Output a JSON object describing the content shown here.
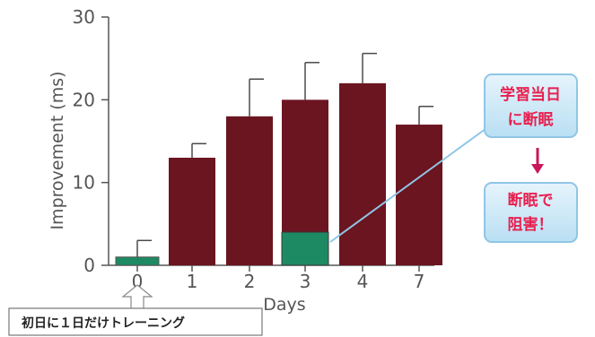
{
  "chart_data": {
    "type": "bar",
    "categories": [
      "0",
      "1",
      "2",
      "3",
      "4",
      "7"
    ],
    "values": [
      1,
      13,
      18,
      20,
      22,
      17
    ],
    "error_upper": [
      3,
      14.7,
      22.5,
      24.5,
      25.6,
      19.2
    ],
    "ylabel": "Improvement (ms)",
    "xlabel": "Days",
    "ylim": [
      0,
      30
    ],
    "yticks": [
      0,
      10,
      20,
      30
    ],
    "grid": false,
    "inset_bar": {
      "category": "3",
      "value": 4,
      "color": "#1e8a63"
    },
    "colors": {
      "bar": "#6b1520",
      "bar_day0": "#1e8a63",
      "error": "#4a4a4a"
    }
  },
  "callout": {
    "line1": "学習当日",
    "line2": "に断眠",
    "arrow": "↓",
    "result_line1": "断眠で",
    "result_line2": "阻害！",
    "text_color": "#e8204f",
    "fill": "#cfeaf8"
  },
  "note": {
    "text": "初日に１日だけトレーニング"
  }
}
